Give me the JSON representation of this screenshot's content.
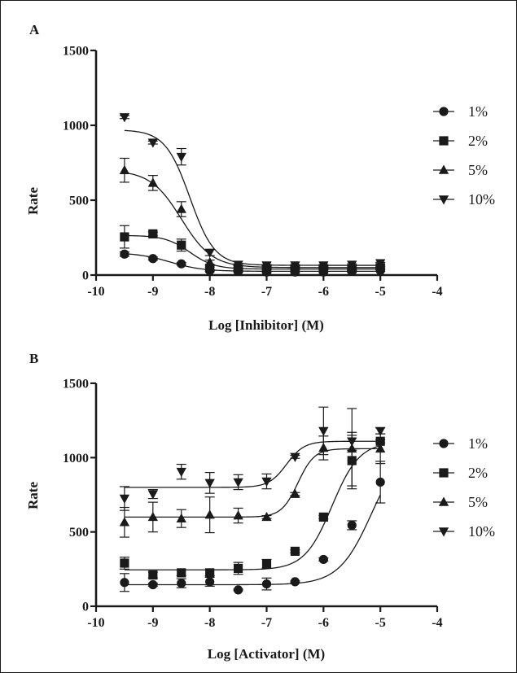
{
  "chart_data": [
    {
      "type": "scatter",
      "panel_label": "A",
      "xlabel": "Log [Inhibitor] (M)",
      "ylabel": "Rate",
      "xlim": [
        -10,
        -4
      ],
      "ylim": [
        0,
        1500
      ],
      "xticks": [
        -10,
        -9,
        -8,
        -7,
        -6,
        -5,
        -4
      ],
      "yticks": [
        0,
        500,
        1000,
        1500
      ],
      "xtick_labels": [
        "-10",
        "-9",
        "-8",
        "-7",
        "-6",
        "-5",
        "-4"
      ],
      "ytick_labels": [
        "0",
        "500",
        "1000",
        "1500"
      ],
      "legend_position": "right",
      "curve_kind": "inhibition",
      "series": [
        {
          "name": "1%",
          "marker": "circle",
          "points": [
            {
              "x": -9.5,
              "y": 140,
              "err": 15
            },
            {
              "x": -9,
              "y": 110,
              "err": 10
            },
            {
              "x": -8.5,
              "y": 75,
              "err": 8
            },
            {
              "x": -8,
              "y": 30,
              "err": 5
            },
            {
              "x": -7.5,
              "y": 25,
              "err": 5
            },
            {
              "x": -7,
              "y": 20,
              "err": 5
            },
            {
              "x": -6.5,
              "y": 20,
              "err": 5
            },
            {
              "x": -6,
              "y": 20,
              "err": 5
            },
            {
              "x": -5.5,
              "y": 25,
              "err": 5
            },
            {
              "x": -5,
              "y": 30,
              "err": 5
            }
          ],
          "fit": {
            "top": 150,
            "bottom": 25,
            "logx50": -8.7,
            "hill": 1.5
          }
        },
        {
          "name": "2%",
          "marker": "square",
          "points": [
            {
              "x": -9.5,
              "y": 255,
              "err": 75
            },
            {
              "x": -9,
              "y": 275,
              "err": 12
            },
            {
              "x": -8.5,
              "y": 200,
              "err": 40
            },
            {
              "x": -8,
              "y": 45,
              "err": 8
            },
            {
              "x": -7.5,
              "y": 40,
              "err": 5
            },
            {
              "x": -7,
              "y": 40,
              "err": 5
            },
            {
              "x": -6.5,
              "y": 40,
              "err": 5
            },
            {
              "x": -6,
              "y": 40,
              "err": 5
            },
            {
              "x": -5.5,
              "y": 40,
              "err": 5
            },
            {
              "x": -5,
              "y": 50,
              "err": 5
            }
          ],
          "fit": {
            "top": 265,
            "bottom": 40,
            "logx50": -8.35,
            "hill": 2
          }
        },
        {
          "name": "5%",
          "marker": "triangle-up",
          "points": [
            {
              "x": -9.5,
              "y": 700,
              "err": 80
            },
            {
              "x": -9,
              "y": 615,
              "err": 50
            },
            {
              "x": -8.5,
              "y": 440,
              "err": 50
            },
            {
              "x": -8,
              "y": 85,
              "err": 15
            },
            {
              "x": -7.5,
              "y": 55,
              "err": 5
            },
            {
              "x": -7,
              "y": 50,
              "err": 5
            },
            {
              "x": -6.5,
              "y": 50,
              "err": 5
            },
            {
              "x": -6,
              "y": 50,
              "err": 5
            },
            {
              "x": -5.5,
              "y": 55,
              "err": 5
            },
            {
              "x": -5,
              "y": 60,
              "err": 5
            }
          ],
          "fit": {
            "top": 700,
            "bottom": 50,
            "logx50": -8.5,
            "hill": 1.6
          }
        },
        {
          "name": "10%",
          "marker": "triangle-down",
          "points": [
            {
              "x": -9.5,
              "y": 1055,
              "err": 10
            },
            {
              "x": -9,
              "y": 885,
              "err": 10
            },
            {
              "x": -8.5,
              "y": 790,
              "err": 55
            },
            {
              "x": -8,
              "y": 150,
              "err": 20
            },
            {
              "x": -7.5,
              "y": 70,
              "err": 5
            },
            {
              "x": -7,
              "y": 65,
              "err": 5
            },
            {
              "x": -6.5,
              "y": 65,
              "err": 5
            },
            {
              "x": -6,
              "y": 65,
              "err": 5
            },
            {
              "x": -5.5,
              "y": 70,
              "err": 5
            },
            {
              "x": -5,
              "y": 80,
              "err": 5
            }
          ],
          "fit": {
            "top": 970,
            "bottom": 65,
            "logx50": -8.35,
            "hill": 2
          }
        }
      ]
    },
    {
      "type": "scatter",
      "panel_label": "B",
      "xlabel": "Log [Activator] (M)",
      "ylabel": "Rate",
      "xlim": [
        -10,
        -4
      ],
      "ylim": [
        0,
        1500
      ],
      "xticks": [
        -10,
        -9,
        -8,
        -7,
        -6,
        -5,
        -4
      ],
      "yticks": [
        0,
        500,
        1000,
        1500
      ],
      "xtick_labels": [
        "-10",
        "-9",
        "-8",
        "-7",
        "-6",
        "-5",
        "-4"
      ],
      "ytick_labels": [
        "0",
        "500",
        "1000",
        "1500"
      ],
      "legend_position": "right",
      "curve_kind": "activation",
      "series": [
        {
          "name": "1%",
          "marker": "circle",
          "points": [
            {
              "x": -9.5,
              "y": 160,
              "err": 60
            },
            {
              "x": -9,
              "y": 145,
              "err": 10
            },
            {
              "x": -8.5,
              "y": 155,
              "err": 30
            },
            {
              "x": -8,
              "y": 165,
              "err": 30
            },
            {
              "x": -7.5,
              "y": 110,
              "err": 5
            },
            {
              "x": -7,
              "y": 150,
              "err": 40
            },
            {
              "x": -6.5,
              "y": 165,
              "err": 5
            },
            {
              "x": -6,
              "y": 315,
              "err": 10
            },
            {
              "x": -5.5,
              "y": 545,
              "err": 30
            },
            {
              "x": -5,
              "y": 835,
              "err": 140
            }
          ],
          "fit": {
            "bottom": 145,
            "top": 1110,
            "logx50": -5.15,
            "hill": 1.5
          }
        },
        {
          "name": "2%",
          "marker": "square",
          "points": [
            {
              "x": -9.5,
              "y": 290,
              "err": 40
            },
            {
              "x": -9,
              "y": 210,
              "err": 20
            },
            {
              "x": -8.5,
              "y": 225,
              "err": 20
            },
            {
              "x": -8,
              "y": 225,
              "err": 20
            },
            {
              "x": -7.5,
              "y": 255,
              "err": 40
            },
            {
              "x": -7,
              "y": 285,
              "err": 30
            },
            {
              "x": -6.5,
              "y": 370,
              "err": 10
            },
            {
              "x": -6,
              "y": 600,
              "err": 10
            },
            {
              "x": -5.5,
              "y": 980,
              "err": 170
            },
            {
              "x": -5,
              "y": 1110,
              "err": 10
            }
          ],
          "fit": {
            "bottom": 245,
            "top": 1105,
            "logx50": -5.85,
            "hill": 1.8
          }
        },
        {
          "name": "5%",
          "marker": "triangle-up",
          "points": [
            {
              "x": -9.5,
              "y": 565,
              "err": 100
            },
            {
              "x": -9,
              "y": 600,
              "err": 100
            },
            {
              "x": -8.5,
              "y": 590,
              "err": 60
            },
            {
              "x": -8,
              "y": 615,
              "err": 120
            },
            {
              "x": -7.5,
              "y": 610,
              "err": 50
            },
            {
              "x": -7,
              "y": 600,
              "err": 10
            },
            {
              "x": -6.5,
              "y": 755,
              "err": 10
            },
            {
              "x": -6,
              "y": 1065,
              "err": 80
            },
            {
              "x": -5.5,
              "y": 1060,
              "err": 270
            },
            {
              "x": -5,
              "y": 1060,
              "err": 100
            }
          ],
          "fit": {
            "bottom": 600,
            "top": 1060,
            "logx50": -6.45,
            "hill": 3
          }
        },
        {
          "name": "10%",
          "marker": "triangle-down",
          "points": [
            {
              "x": -9.5,
              "y": 725,
              "err": 80
            },
            {
              "x": -9,
              "y": 755,
              "err": 30
            },
            {
              "x": -8.5,
              "y": 905,
              "err": 50
            },
            {
              "x": -8,
              "y": 830,
              "err": 70
            },
            {
              "x": -7.5,
              "y": 835,
              "err": 50
            },
            {
              "x": -7,
              "y": 840,
              "err": 50
            },
            {
              "x": -6.5,
              "y": 1005,
              "err": 10
            },
            {
              "x": -6,
              "y": 1180,
              "err": 160
            },
            {
              "x": -5.5,
              "y": 1110,
              "err": 60
            },
            {
              "x": -5,
              "y": 1180,
              "err": 20
            }
          ],
          "fit": {
            "bottom": 800,
            "top": 1110,
            "logx50": -6.65,
            "hill": 2.8
          }
        }
      ]
    }
  ]
}
